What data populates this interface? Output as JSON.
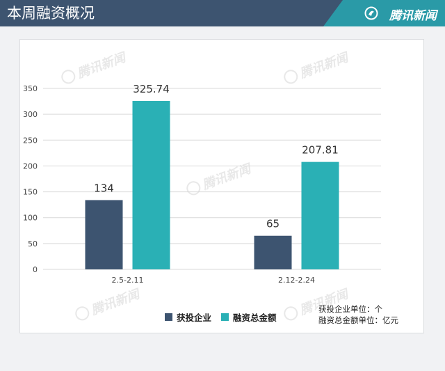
{
  "header": {
    "title": "本周融资概况",
    "brand": "腾讯新闻"
  },
  "colors": {
    "header_bg": "#3d5470",
    "brand_bg": "#2a9aa7",
    "series_companies": "#3d5470",
    "series_amount": "#2ab0b5"
  },
  "watermark": "腾讯新闻",
  "units": {
    "line1": "获投企业单位：个",
    "line2": "融资总金额单位：亿元"
  },
  "chart_data": {
    "type": "bar",
    "categories": [
      "2.5-2.11",
      "2.12-2.24"
    ],
    "series": [
      {
        "name": "获投企业",
        "values": [
          134,
          65
        ]
      },
      {
        "name": "融资总金额",
        "values": [
          325.74,
          207.81
        ]
      }
    ],
    "data_labels": [
      [
        "134",
        "65"
      ],
      [
        "325.74",
        "207.81"
      ]
    ],
    "yticks": [
      0,
      50,
      100,
      150,
      200,
      250,
      300,
      350
    ],
    "ylim": [
      0,
      350
    ],
    "grid": true,
    "legend_position": "bottom"
  }
}
